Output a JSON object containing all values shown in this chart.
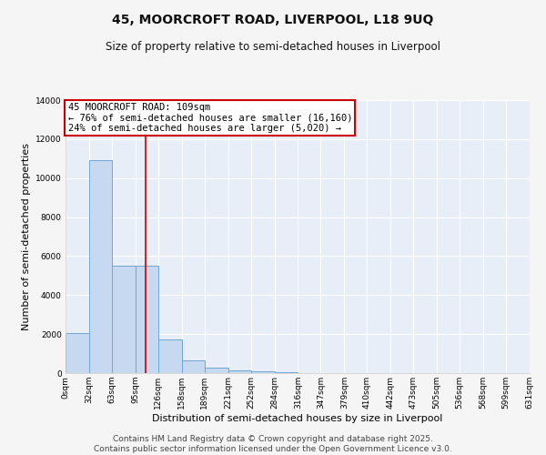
{
  "title": "45, MOORCROFT ROAD, LIVERPOOL, L18 9UQ",
  "subtitle": "Size of property relative to semi-detached houses in Liverpool",
  "xlabel": "Distribution of semi-detached houses by size in Liverpool",
  "ylabel": "Number of semi-detached properties",
  "bin_edges": [
    0,
    32,
    63,
    95,
    126,
    158,
    189,
    221,
    252,
    284,
    316,
    347,
    379,
    410,
    442,
    473,
    505,
    536,
    568,
    599,
    631
  ],
  "bar_heights": [
    2050,
    10900,
    5500,
    5500,
    1750,
    650,
    300,
    150,
    100,
    50,
    20,
    10,
    5,
    5,
    5,
    5,
    5,
    5,
    5,
    5
  ],
  "bar_color": "#c6d9f1",
  "bar_edge_color": "#6fa8d4",
  "property_size": 109,
  "vline_color": "#cc0000",
  "annotation_text": "45 MOORCROFT ROAD: 109sqm\n← 76% of semi-detached houses are smaller (16,160)\n24% of semi-detached houses are larger (5,020) →",
  "annotation_box_color": "#cc0000",
  "annotation_text_color": "#000000",
  "ylim": [
    0,
    14000
  ],
  "yticks": [
    0,
    2000,
    4000,
    6000,
    8000,
    10000,
    12000,
    14000
  ],
  "background_color": "#e8eef7",
  "grid_color": "#ffffff",
  "fig_background": "#f5f5f5",
  "footer_line1": "Contains HM Land Registry data © Crown copyright and database right 2025.",
  "footer_line2": "Contains public sector information licensed under the Open Government Licence v3.0.",
  "title_fontsize": 10,
  "subtitle_fontsize": 8.5,
  "axis_label_fontsize": 8,
  "tick_fontsize": 6.5,
  "annotation_fontsize": 7.5,
  "footer_fontsize": 6.5
}
